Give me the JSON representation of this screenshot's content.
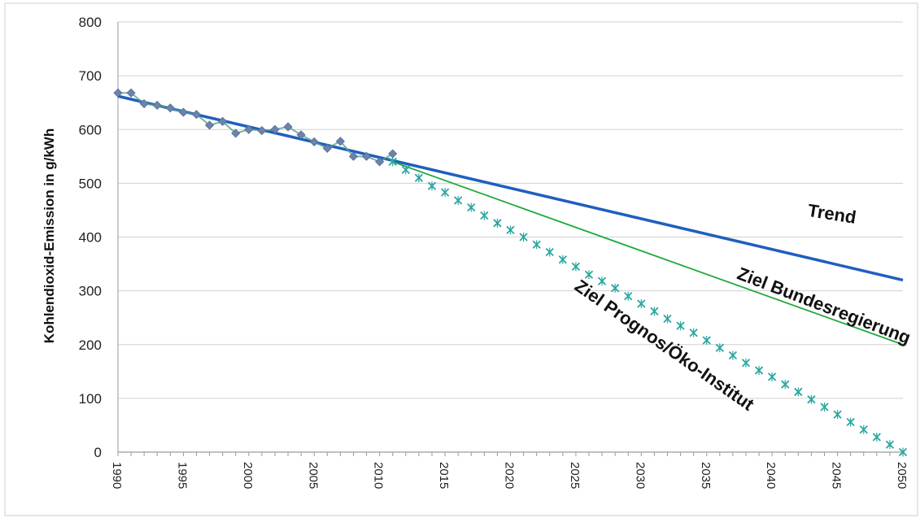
{
  "chart_data": {
    "type": "line",
    "title": "",
    "xlabel": "",
    "ylabel": "Kohlendioxid-Emission in g/kWh",
    "xlim": [
      1990,
      2050
    ],
    "ylim": [
      0,
      800
    ],
    "x_ticks": [
      "1990",
      "1995",
      "2000",
      "2005",
      "2010",
      "2015",
      "2020",
      "2025",
      "2030",
      "2035",
      "2040",
      "2045",
      "2050"
    ],
    "y_ticks": [
      "0",
      "100",
      "200",
      "300",
      "400",
      "500",
      "600",
      "700",
      "800"
    ],
    "grid": true,
    "legend": "none",
    "colors": {
      "trend": "#1f5fbf",
      "ziel_bundesregierung": "#1faa3c",
      "ziel_prognos": "#2aa6a0",
      "observed": "#6f83aa",
      "grid": "#d0d0d0"
    },
    "series": [
      {
        "name": "Trend",
        "kind": "line",
        "x": [
          1990,
          2050
        ],
        "y": [
          662,
          320
        ]
      },
      {
        "name": "Ziel Bundesregierung",
        "kind": "line",
        "x": [
          2011,
          2050
        ],
        "y": [
          540,
          200
        ]
      },
      {
        "name": "Ziel Prognos/Öko-Institut",
        "kind": "markers",
        "x": [
          2011,
          2012,
          2013,
          2014,
          2015,
          2016,
          2017,
          2018,
          2019,
          2020,
          2021,
          2022,
          2023,
          2024,
          2025,
          2026,
          2027,
          2028,
          2029,
          2030,
          2031,
          2032,
          2033,
          2034,
          2035,
          2036,
          2037,
          2038,
          2039,
          2040,
          2041,
          2042,
          2043,
          2044,
          2045,
          2046,
          2047,
          2048,
          2049,
          2050
        ],
        "y": [
          540,
          525,
          510,
          495,
          483,
          468,
          455,
          440,
          426,
          413,
          400,
          386,
          372,
          358,
          345,
          330,
          318,
          305,
          290,
          276,
          262,
          248,
          235,
          222,
          208,
          194,
          180,
          166,
          152,
          140,
          126,
          112,
          98,
          84,
          70,
          56,
          42,
          28,
          14,
          0
        ]
      },
      {
        "kind": "markers",
        "x": [
          1990,
          1991,
          1992,
          1993,
          1994,
          1995,
          1996,
          1997,
          1998,
          1999,
          2000,
          2001,
          2002,
          2003,
          2004,
          2005,
          2006,
          2007,
          2008,
          2009,
          2010,
          2011
        ],
        "y": [
          668,
          668,
          648,
          645,
          640,
          632,
          628,
          608,
          615,
          593,
          600,
          598,
          600,
          605,
          590,
          577,
          565,
          578,
          550,
          550,
          540,
          555
        ]
      }
    ],
    "annotations": [
      {
        "text": "Trend",
        "x": 2044.5,
        "y": 432,
        "angle": 9
      },
      {
        "text": "Ziel Bundesregierung",
        "x": 2043.8,
        "y": 262,
        "angle": 21
      },
      {
        "text": "Ziel Prognos/Öko-Institut",
        "x": 2031.5,
        "y": 190,
        "angle": 35
      }
    ]
  }
}
